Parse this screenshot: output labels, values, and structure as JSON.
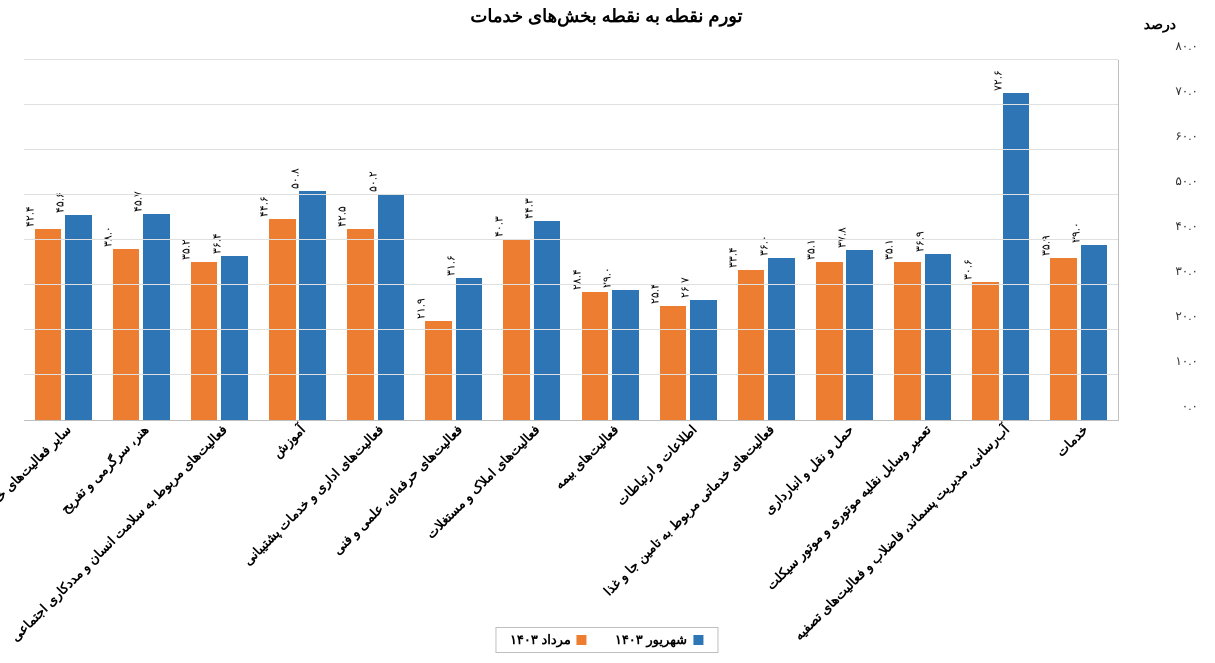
{
  "chart": {
    "type": "bar",
    "title": "تورم نقطه به نقطه بخش‌های خدمات",
    "title_fontsize": 18,
    "ylabel": "درصد",
    "background_color": "#ffffff",
    "grid_color": "#e0e0e0",
    "axis_color": "#bfbfbf",
    "ylim": [
      0,
      80
    ],
    "ytick_step": 10,
    "yticks_display": [
      "۰.۰",
      "۱۰.۰",
      "۲۰.۰",
      "۳۰.۰",
      "۴۰.۰",
      "۵۰.۰",
      "۶۰.۰",
      "۷۰.۰",
      "۸۰.۰"
    ],
    "bar_width_ratio": 0.34,
    "group_gap_ratio": 0.05,
    "label_fontsize": 11,
    "xlabel_fontsize": 13,
    "series": [
      {
        "key": "s1",
        "label": "شهریور ۱۴۰۳",
        "color": "#2e75b6"
      },
      {
        "key": "s2",
        "label": "مرداد ۱۴۰۳",
        "color": "#ed7d31"
      }
    ],
    "categories": [
      "خدمات",
      "آب‌رسانی، مدیریت پسماند، فاضلاب و فعالیت‌های تصفیه",
      "تعمیر وسایل نقلیه موتوری و موتور سیکلت",
      "حمل و نقل و انبارداری",
      "فعالیت‌های خدماتی مربوط به تامین جا و غذا",
      "اطلاعات و ارتباطات",
      "فعالیت‌های بیمه",
      "فعالیت‌های املاک و مستغلات",
      "فعالیت‌های حرفه‌ای، علمی و فنی",
      "فعالیت‌های اداری و خدمات پشتیبانی",
      "آموزش",
      "فعالیت‌های مربوط به سلامت انسان و مددکاری اجتماعی",
      "هنر، سرگرمی و تفریح",
      "سایر فعالیت‌های خدماتی"
    ],
    "values": {
      "s1": [
        39.0,
        72.6,
        36.9,
        37.8,
        36.0,
        26.7,
        29.0,
        44.3,
        31.6,
        50.2,
        50.8,
        36.4,
        45.7,
        45.6
      ],
      "s2": [
        35.9,
        30.6,
        35.1,
        35.1,
        33.4,
        25.4,
        28.4,
        40.3,
        21.9,
        42.5,
        44.6,
        35.2,
        38.0,
        42.4
      ]
    },
    "value_labels": {
      "s1": [
        "۳۹.۰",
        "۷۲.۶",
        "۳۶.۹",
        "۳۷.۸",
        "۳۶.۰",
        "۲۶.۷",
        "۲۹.۰",
        "۴۴.۳",
        "۳۱.۶",
        "۵۰.۲",
        "۵۰.۸",
        "۳۶.۴",
        "۴۵.۷",
        "۴۵.۶"
      ],
      "s2": [
        "۳۵.۹",
        "۳۰.۶",
        "۳۵.۱",
        "۳۵.۱",
        "۳۳.۴",
        "۲۵.۴",
        "۲۸.۴",
        "۴۰.۳",
        "۲۱.۹",
        "۴۲.۵",
        "۴۴.۶",
        "۳۵.۲",
        "۳۸.۰",
        "۴۲.۴"
      ]
    }
  }
}
